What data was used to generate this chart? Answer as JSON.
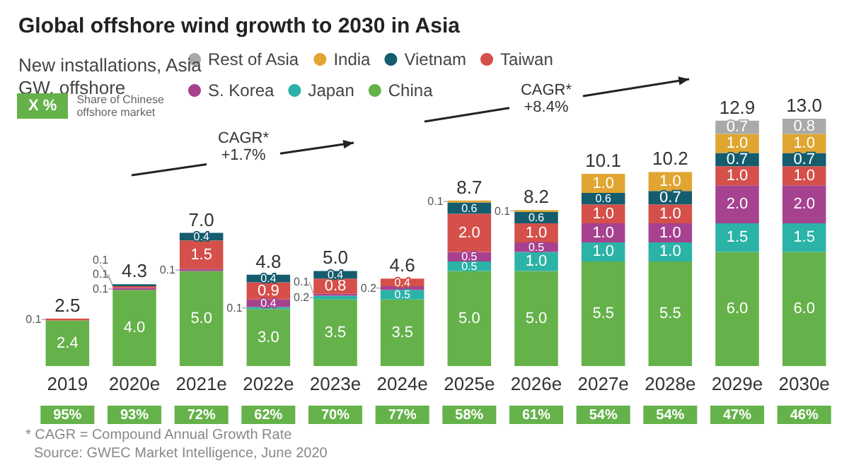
{
  "chart_data": {
    "type": "bar",
    "title": "Global offshore wind growth to 2030 in Asia",
    "subtitle": "New installations, Asia\nGW, offshore",
    "categories": [
      "2019",
      "2020e",
      "2021e",
      "2022e",
      "2023e",
      "2024e",
      "2025e",
      "2026e",
      "2027e",
      "2028e",
      "2029e",
      "2030e"
    ],
    "stacked": true,
    "legend": "top",
    "series": [
      {
        "name": "China",
        "color": "#65b24a",
        "values": [
          2.4,
          4.0,
          5.0,
          3.0,
          3.5,
          3.5,
          5.0,
          5.0,
          5.5,
          5.5,
          6.0,
          6.0
        ],
        "value_labels": [
          "2.4",
          "4.0",
          "5.0",
          "3.0",
          "3.5",
          "3.5",
          "5.0",
          "5.0",
          "5.5",
          "5.5",
          "6.0",
          "6.0"
        ]
      },
      {
        "name": "Japan",
        "color": "#2bb3a7",
        "values": [
          null,
          null,
          null,
          0.1,
          0.2,
          0.5,
          0.5,
          1.0,
          1.0,
          1.0,
          1.5,
          1.5
        ],
        "value_labels": [
          null,
          null,
          null,
          "0.1",
          "0.2",
          "0.5",
          "0.5",
          "1.0",
          "1.0",
          "1.0",
          "1.5",
          "1.5"
        ]
      },
      {
        "name": "S. Korea",
        "color": "#a6428f",
        "values": [
          null,
          0.1,
          0.1,
          0.4,
          0.1,
          0.2,
          0.5,
          0.5,
          1.0,
          1.0,
          2.0,
          2.0
        ],
        "value_labels": [
          null,
          "0.1",
          "0.1",
          "0.4",
          "0.1",
          "0.2",
          "0.5",
          "0.5",
          "1.0",
          "1.0",
          "2.0",
          "2.0"
        ]
      },
      {
        "name": "Taiwan",
        "color": "#d5504a",
        "values": [
          0.1,
          0.1,
          1.5,
          0.9,
          0.8,
          0.4,
          2.0,
          1.0,
          1.0,
          1.0,
          1.0,
          1.0
        ],
        "value_labels": [
          "0.1",
          "0.1",
          "1.5",
          "0.9",
          "0.8",
          "0.4",
          "2.0",
          "1.0",
          "1.0",
          "1.0",
          "1.0",
          "1.0"
        ]
      },
      {
        "name": "Vietnam",
        "color": "#145c6e",
        "values": [
          null,
          0.1,
          0.4,
          0.4,
          0.4,
          null,
          0.6,
          0.6,
          0.6,
          0.7,
          0.7,
          0.7
        ],
        "value_labels": [
          null,
          "0.1",
          "0.4",
          "0.4",
          "0.4",
          null,
          "0.6",
          "0.6",
          "0.6",
          "0.7",
          "0.7",
          "0.7"
        ]
      },
      {
        "name": "India",
        "color": "#e0a631",
        "values": [
          null,
          null,
          null,
          null,
          null,
          null,
          0.1,
          0.1,
          1.0,
          1.0,
          1.0,
          1.0
        ],
        "value_labels": [
          null,
          null,
          null,
          null,
          null,
          null,
          "0.1",
          "0.1",
          "1.0",
          "1.0",
          "1.0",
          "1.0"
        ]
      },
      {
        "name": "Rest of Asia",
        "color": "#a9a9a9",
        "values": [
          null,
          null,
          null,
          null,
          null,
          null,
          null,
          null,
          null,
          null,
          0.7,
          0.8
        ],
        "value_labels": [
          null,
          null,
          null,
          null,
          null,
          null,
          null,
          null,
          null,
          null,
          "0.7",
          "0.8"
        ]
      }
    ],
    "totals": [
      "2.5",
      "4.3",
      "7.0",
      "4.8",
      "5.0",
      "4.6",
      "8.7",
      "8.2",
      "10.1",
      "10.2",
      "12.9",
      "13.0"
    ],
    "annotations": [
      "X %",
      "Share of Chinese\noffshore market",
      "CAGR*\n+1.7%",
      "CAGR*\n+8.4%",
      "* CAGR = Compound Annual Growth Rate",
      "Source: GWEC Market Intelligence, June 2020",
      "95%",
      "93%",
      "72%",
      "62%",
      "70%",
      "77%",
      "58%",
      "61%",
      "54%",
      "54%",
      "47%",
      "46%"
    ]
  }
}
